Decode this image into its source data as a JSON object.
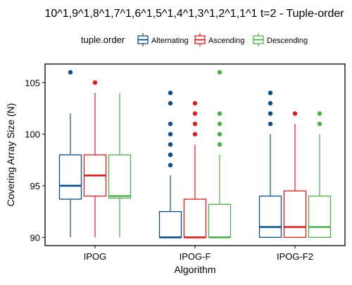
{
  "chart_data": {
    "type": "boxplot",
    "title": "10^1,9^1,8^1,7^1,6^1,5^1,4^1,3^1,2^1,1^1 t=2 - Tuple-order",
    "xlabel": "Algorithm",
    "ylabel": "Covering Array Size (N)",
    "ylim": [
      89.2,
      106.8
    ],
    "yticks": [
      90,
      95,
      100,
      105
    ],
    "legend": {
      "title": "tuple.order",
      "placement": "top"
    },
    "categories": [
      "IPOG",
      "IPOG-F",
      "IPOG-F2"
    ],
    "series": [
      {
        "name": "Alternating",
        "color": "#0b4f8a",
        "boxes": [
          {
            "min": 90,
            "q1": 93.7,
            "median": 95,
            "q3": 98,
            "max": 102,
            "outliers": [
              106
            ]
          },
          {
            "min": 90,
            "q1": 90,
            "median": 90,
            "q3": 92.5,
            "max": 96,
            "outliers": [
              97,
              98,
              98,
              99,
              100,
              101,
              103,
              104
            ]
          },
          {
            "min": 90,
            "q1": 90,
            "median": 91,
            "q3": 94,
            "max": 100,
            "outliers": [
              101,
              102,
              103,
              104
            ]
          }
        ]
      },
      {
        "name": "Ascending",
        "color": "#e31a1c",
        "boxes": [
          {
            "min": 90,
            "q1": 94,
            "median": 96,
            "q3": 98,
            "max": 104,
            "outliers": [
              105
            ]
          },
          {
            "min": 90,
            "q1": 90,
            "median": 90,
            "q3": 93.7,
            "max": 99,
            "outliers": [
              100,
              101,
              102,
              103
            ]
          },
          {
            "min": 90,
            "q1": 90,
            "median": 91,
            "q3": 94.5,
            "max": 101,
            "outliers": [
              102
            ]
          }
        ]
      },
      {
        "name": "Descending",
        "color": "#4daf4a",
        "boxes": [
          {
            "min": 90,
            "q1": 93.8,
            "median": 94,
            "q3": 98,
            "max": 104,
            "outliers": []
          },
          {
            "min": 90,
            "q1": 90,
            "median": 90,
            "q3": 93.2,
            "max": 98,
            "outliers": [
              99,
              100,
              101,
              102,
              106
            ]
          },
          {
            "min": 90,
            "q1": 90,
            "median": 91,
            "q3": 94,
            "max": 100,
            "outliers": [
              101,
              102
            ]
          }
        ]
      }
    ]
  }
}
